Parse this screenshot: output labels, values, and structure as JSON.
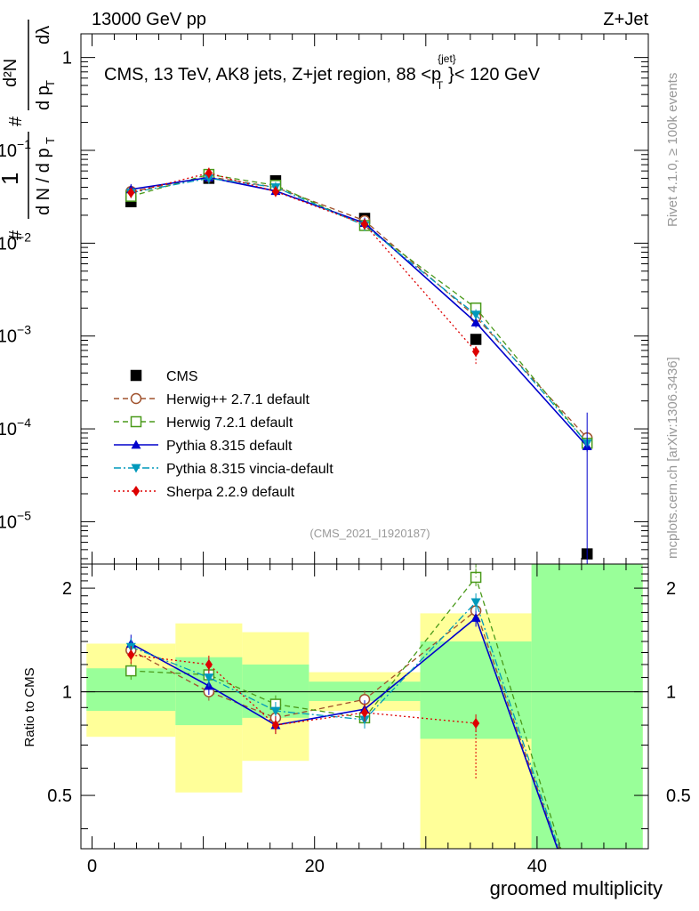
{
  "header": {
    "beam": "13000 GeV pp",
    "process": "Z+Jet",
    "side_rivet": "Rivet 4.1.0, ≥ 100k events",
    "side_mcplots": "mcplots.cern.ch [arXiv:1306.3436]",
    "analysis_id": "(CMS_2021_I1920187)"
  },
  "chart_data": [
    {
      "type": "line",
      "panel": "main",
      "title": "CMS, 13 TeV, AK8 jets, Z+jet region, 88 <p_T^{jet}< 120 GeV",
      "title_parts": {
        "main": "CMS, 13 TeV, AK8 jets, Z+jet region, 88 <p",
        "sup": "{jet}",
        "sub": "T",
        "tail": "}< 120 GeV"
      },
      "ylabel": "1/(dN/dp_T) d²N/(dp_T dλ)",
      "ylabel_parts": {
        "one": "1",
        "hash": "#",
        "dN": "d N / d p",
        "T": "T",
        "d2N": "d²N",
        "dpdl": "d p",
        "dl": "dλ"
      },
      "yscale": "log",
      "ylim": [
        3.5e-06,
        1.8
      ],
      "xlim": [
        -1,
        50
      ],
      "yticks": [
        {
          "value": 1,
          "base": "1",
          "exp": ""
        },
        {
          "value": 0.1,
          "base": "10",
          "exp": "−1"
        },
        {
          "value": 0.01,
          "base": "10",
          "exp": "−2"
        },
        {
          "value": 0.001,
          "base": "10",
          "exp": "−3"
        },
        {
          "value": 0.0001,
          "base": "10",
          "exp": "−4"
        },
        {
          "value": 1e-05,
          "base": "10",
          "exp": "−5"
        }
      ],
      "legend_position": "lower-left",
      "series": [
        {
          "name": "CMS",
          "marker": "square",
          "color": "#000000",
          "style": "none",
          "x": [
            3.5,
            10.5,
            16.5,
            24.5,
            34.5,
            44.5
          ],
          "y": [
            0.028,
            0.05,
            0.047,
            0.0185,
            0.00092,
            4.5e-06
          ]
        },
        {
          "name": "Herwig++ 2.7.1 default",
          "marker": "circle-open",
          "color": "#a0522d",
          "style": "dashed",
          "x": [
            3.5,
            10.5,
            16.5,
            24.5,
            34.5,
            44.5
          ],
          "y": [
            0.036,
            0.052,
            0.04,
            0.0175,
            0.0016,
            8e-05
          ]
        },
        {
          "name": "Herwig 7.2.1 default",
          "marker": "square-open",
          "color": "#4a9a1a",
          "style": "dashed",
          "x": [
            3.5,
            10.5,
            16.5,
            24.5,
            34.5,
            44.5
          ],
          "y": [
            0.032,
            0.055,
            0.042,
            0.0155,
            0.002,
            7e-05
          ]
        },
        {
          "name": "Pythia 8.315 default",
          "marker": "triangle-up",
          "color": "#0000cc",
          "style": "solid",
          "x": [
            3.5,
            10.5,
            16.5,
            24.5,
            34.5,
            44.5
          ],
          "y": [
            0.038,
            0.051,
            0.0365,
            0.0165,
            0.0014,
            6.5e-05
          ]
        },
        {
          "name": "Pythia 8.315 vincia-default",
          "marker": "triangle-down",
          "color": "#0099bb",
          "style": "dashdot",
          "x": [
            3.5,
            10.5,
            16.5,
            24.5,
            34.5,
            44.5
          ],
          "y": [
            0.035,
            0.05,
            0.04,
            0.0155,
            0.0017,
            7e-05
          ]
        },
        {
          "name": "Sherpa 2.2.9 default",
          "marker": "diamond",
          "color": "#dd0000",
          "style": "dotted",
          "x": [
            3.5,
            10.5,
            16.5,
            24.5,
            34.5
          ],
          "y": [
            0.035,
            0.057,
            0.036,
            0.016,
            0.00068
          ]
        }
      ]
    },
    {
      "type": "line",
      "panel": "ratio",
      "ylabel": "Ratio to CMS",
      "xlabel": "groomed multiplicity",
      "xlim": [
        -1,
        50
      ],
      "ylim": [
        0.35,
        2.35
      ],
      "xticks": [
        0,
        20,
        40
      ],
      "yticks": [
        0.5,
        1,
        2
      ],
      "bands": {
        "edges": [
          -0.5,
          7.5,
          13.5,
          19.5,
          29.5,
          39.5,
          49.5
        ],
        "inner": [
          [
            0.88,
            1.17
          ],
          [
            0.8,
            1.26
          ],
          [
            0.84,
            1.2
          ],
          [
            0.94,
            1.07
          ],
          [
            0.73,
            1.4
          ],
          [
            0.35,
            2.35
          ]
        ],
        "outer": [
          [
            0.74,
            1.38
          ],
          [
            0.51,
            1.58
          ],
          [
            0.63,
            1.49
          ],
          [
            0.88,
            1.14
          ],
          [
            0.35,
            1.69
          ],
          [
            0.35,
            2.35
          ]
        ]
      },
      "series": [
        {
          "name": "Herwig++ 2.7.1 default",
          "x": [
            3.5,
            10.5,
            16.5,
            24.5,
            34.5,
            44.5
          ],
          "y": [
            1.32,
            1.0,
            0.84,
            0.95,
            1.72,
            0.2
          ]
        },
        {
          "name": "Herwig 7.2.1 default",
          "x": [
            3.5,
            10.5,
            16.5,
            24.5,
            34.5,
            44.5
          ],
          "y": [
            1.15,
            1.12,
            0.92,
            0.84,
            2.15,
            0.2
          ]
        },
        {
          "name": "Pythia 8.315 default",
          "x": [
            3.5,
            10.5,
            16.5,
            24.5,
            34.5,
            44.5
          ],
          "y": [
            1.38,
            1.04,
            0.8,
            0.89,
            1.64,
            0.2
          ]
        },
        {
          "name": "Pythia 8.315 vincia-default",
          "x": [
            3.5,
            10.5,
            16.5,
            24.5,
            34.5,
            44.5
          ],
          "y": [
            1.35,
            1.1,
            0.88,
            0.83,
            1.82,
            0.2
          ]
        },
        {
          "name": "Sherpa 2.2.9 default",
          "x": [
            3.5,
            10.5,
            16.5,
            24.5,
            34.5
          ],
          "y": [
            1.28,
            1.2,
            0.8,
            0.87,
            0.81
          ]
        }
      ]
    }
  ]
}
